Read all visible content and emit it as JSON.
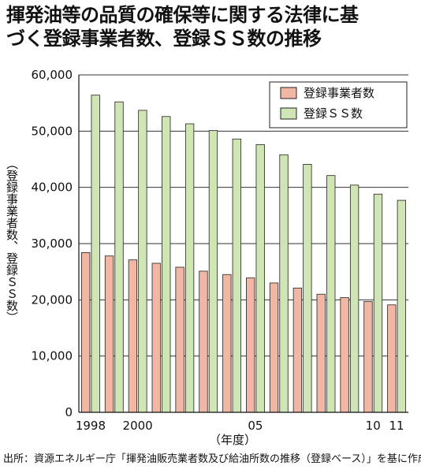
{
  "title": "揮発油等の品質の確保等に関する法律に基\nづく登録事業者数、登録ＳＳ数の推移",
  "source": "出所：資源エネルギー庁「揮発油販売業者数及び給油所数の推移（登録ベース）」を基に作成",
  "colors": {
    "series_registered_businesses": "#f2b7a4",
    "series_registered_ss": "#cfe6b4",
    "bar_stroke": "#222222",
    "grid": "#333333"
  },
  "chart_data": {
    "type": "bar",
    "ylabel": "（登録事業者数、登録ＳＳ数）",
    "xlabel": "（年度）",
    "ylim": [
      0,
      60000
    ],
    "yticks": [
      0,
      10000,
      20000,
      30000,
      40000,
      50000,
      60000
    ],
    "ytick_labels": [
      "0",
      "10,000",
      "20,000",
      "30,000",
      "40,000",
      "50,000",
      "60,000"
    ],
    "grid": true,
    "legend_position": "top-right",
    "categories": [
      "1998",
      "1999",
      "2000",
      "2001",
      "2002",
      "2003",
      "2004",
      "2005",
      "2006",
      "2007",
      "2008",
      "2009",
      "2010",
      "2011"
    ],
    "xtick_labels": [
      "1998",
      "",
      "2000",
      "",
      "",
      "",
      "",
      "05",
      "",
      "",
      "",
      "",
      "10",
      "11"
    ],
    "series": [
      {
        "name": "登録事業者数",
        "values": [
          28400,
          27800,
          27100,
          26500,
          25800,
          25100,
          24500,
          23900,
          23000,
          22100,
          21000,
          20400,
          19700,
          19100
        ]
      },
      {
        "name": "登録ＳＳ数",
        "values": [
          56400,
          55200,
          53700,
          52600,
          51300,
          50100,
          48600,
          47600,
          45800,
          44100,
          42100,
          40400,
          38800,
          37700
        ]
      }
    ]
  }
}
